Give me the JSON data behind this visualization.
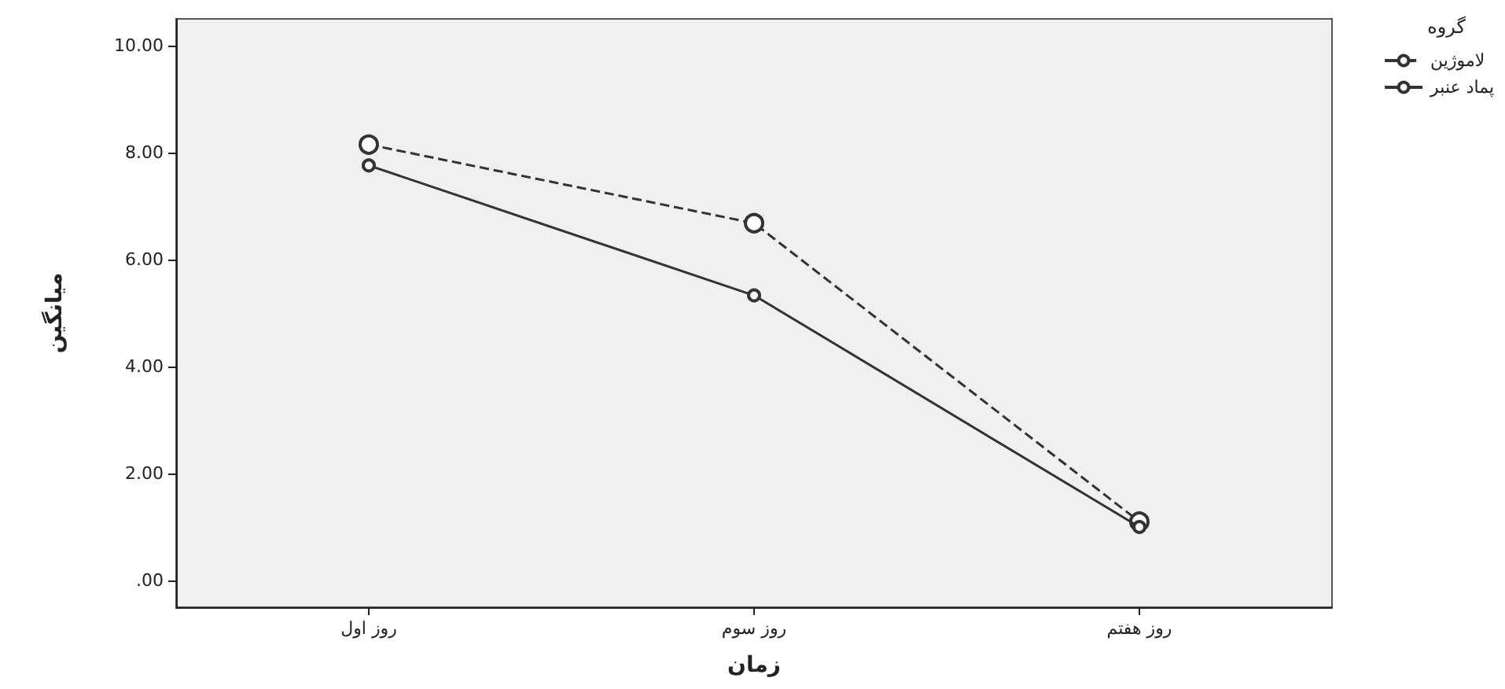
{
  "chart_data": {
    "type": "line",
    "xlabel": "زمان",
    "ylabel": "میانگین",
    "legend_title": "گروه",
    "categories": [
      "روز اول",
      "روز سوم",
      "روز هفتم"
    ],
    "series": [
      {
        "name": "لاموژین",
        "color": "#333333",
        "values": [
          8.15,
          6.68,
          1.1
        ],
        "line_style": "dashed"
      },
      {
        "name": "پماد عنبر",
        "color": "#333333",
        "values": [
          7.76,
          5.33,
          1.0
        ],
        "line_style": "solid"
      }
    ],
    "ylim": [
      -0.5,
      10.5
    ],
    "yticks": [
      {
        "value": 0,
        "label": ".00"
      },
      {
        "value": 2,
        "label": "2.00"
      },
      {
        "value": 4,
        "label": "4.00"
      },
      {
        "value": 6,
        "label": "6.00"
      },
      {
        "value": 8,
        "label": "8.00"
      },
      {
        "value": 10,
        "label": "10.00"
      }
    ],
    "grid": false,
    "legend": "top right",
    "marker": "circle"
  }
}
